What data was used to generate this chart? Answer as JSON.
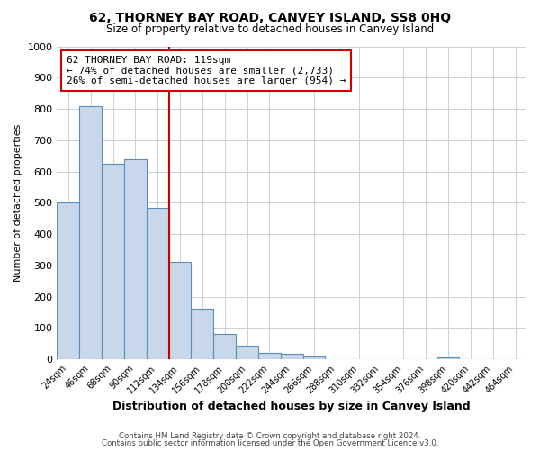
{
  "title": "62, THORNEY BAY ROAD, CANVEY ISLAND, SS8 0HQ",
  "subtitle": "Size of property relative to detached houses in Canvey Island",
  "xlabel": "Distribution of detached houses by size in Canvey Island",
  "ylabel": "Number of detached properties",
  "bin_labels": [
    "24sqm",
    "46sqm",
    "68sqm",
    "90sqm",
    "112sqm",
    "134sqm",
    "156sqm",
    "178sqm",
    "200sqm",
    "222sqm",
    "244sqm",
    "266sqm",
    "288sqm",
    "310sqm",
    "332sqm",
    "354sqm",
    "376sqm",
    "398sqm",
    "420sqm",
    "442sqm",
    "464sqm"
  ],
  "bar_values": [
    500,
    810,
    625,
    638,
    485,
    310,
    162,
    80,
    43,
    20,
    17,
    10,
    0,
    0,
    0,
    0,
    0,
    5,
    0,
    0,
    0
  ],
  "bar_color": "#c8d8ea",
  "bar_edge_color": "#5b8db8",
  "ylim": [
    0,
    1000
  ],
  "yticks": [
    0,
    100,
    200,
    300,
    400,
    500,
    600,
    700,
    800,
    900,
    1000
  ],
  "vline_x": 4.5,
  "vline_color": "#cc0000",
  "annotation_title": "62 THORNEY BAY ROAD: 119sqm",
  "annotation_line1": "← 74% of detached houses are smaller (2,733)",
  "annotation_line2": "26% of semi-detached houses are larger (954) →",
  "annotation_box_color": "#cc0000",
  "footer_line1": "Contains HM Land Registry data © Crown copyright and database right 2024.",
  "footer_line2": "Contains public sector information licensed under the Open Government Licence v3.0.",
  "background_color": "#ffffff",
  "grid_color": "#c8d0d8"
}
